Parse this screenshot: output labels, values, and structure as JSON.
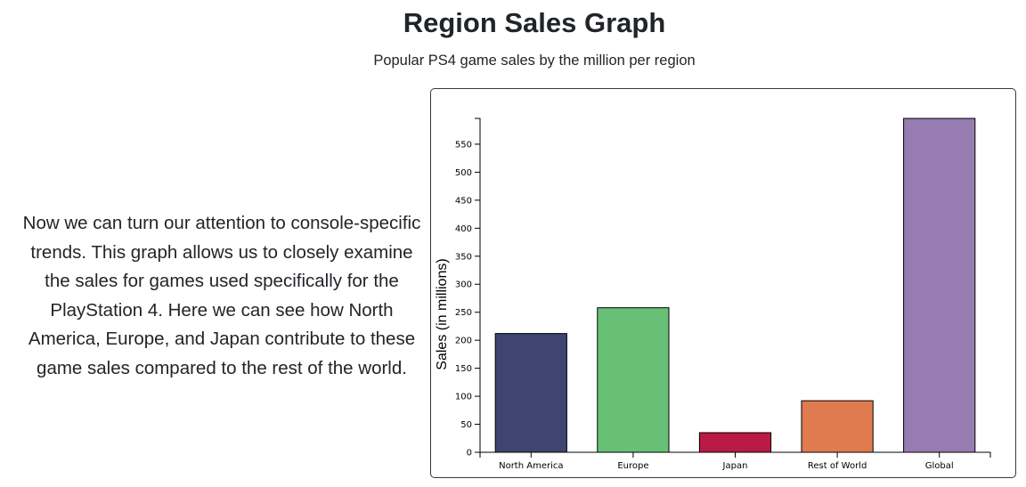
{
  "header": {
    "title": "Region Sales Graph",
    "subtitle": "Popular PS4 game sales by the million per region"
  },
  "description": "Now we can turn our attention to console-specific trends. This graph allows us to closely examine the sales for games used specifically for the PlayStation 4. Here we can see how North America, Europe, and Japan contribute to these game sales compared to the rest of the world.",
  "chart_data": {
    "type": "bar",
    "categories": [
      "North America",
      "Europe",
      "Japan",
      "Rest of World",
      "Global"
    ],
    "values": [
      212,
      258,
      35,
      92,
      596
    ],
    "colors": [
      "#3d4570",
      "#68bf76",
      "#ba1a46",
      "#e07b50",
      "#967cb1"
    ],
    "title": "",
    "xlabel": "",
    "ylabel": "Sales (in millions)",
    "ylim": [
      0,
      596
    ],
    "yticks": [
      0,
      50,
      100,
      150,
      200,
      250,
      300,
      350,
      400,
      450,
      500,
      550
    ],
    "grid": false,
    "legend": "none"
  }
}
